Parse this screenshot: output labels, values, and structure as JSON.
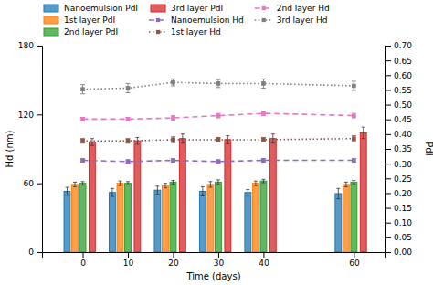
{
  "chart_data": {
    "type": "bar",
    "xlabel": "Time (days)",
    "ylabel": "Hd (nm)",
    "y2label": "PdI",
    "x": [
      0,
      10,
      20,
      30,
      40,
      60
    ],
    "xlim": [
      -9,
      67
    ],
    "xticks": [
      0,
      10,
      20,
      30,
      40,
      60
    ],
    "ylim": [
      0,
      180
    ],
    "yticks": [
      0,
      60,
      120,
      180
    ],
    "y2lim": [
      0,
      0.7
    ],
    "y2ticks": [
      {
        "value": 0,
        "label": "0.00"
      },
      0.05,
      {
        "value": 0.1,
        "label": "0.10"
      },
      0.15,
      {
        "value": 0.2,
        "label": "0.20"
      },
      0.25,
      {
        "value": 0.3,
        "label": "0.30"
      },
      0.35,
      {
        "value": 0.4,
        "label": "0.40"
      },
      0.45,
      {
        "value": 0.5,
        "label": "0.50"
      },
      0.55,
      {
        "value": 0.6,
        "label": "0.60"
      },
      0.65,
      {
        "value": 0.7,
        "label": "0.70"
      }
    ],
    "grid": false,
    "legend": "upper left",
    "series": [
      {
        "name": "Nanoemulsion PdI",
        "type": "bar",
        "values": [
          53,
          52,
          54,
          53,
          52,
          51
        ],
        "errors": [
          3.5,
          3.5,
          3.5,
          4.0,
          2.5,
          4.5
        ]
      },
      {
        "name": "1st layer PdI",
        "type": "bar",
        "values": [
          59,
          60,
          58,
          59,
          60,
          59
        ],
        "errors": [
          2.0,
          2.0,
          2.0,
          2.5,
          2.0,
          2.0
        ]
      },
      {
        "name": "2nd layer PdI",
        "type": "bar",
        "values": [
          60,
          60,
          61,
          61,
          62,
          61
        ],
        "errors": [
          1.5,
          1.5,
          1.5,
          2.0,
          1.5,
          1.5
        ]
      },
      {
        "name": "3rd layer PdI",
        "type": "bar",
        "values": [
          96,
          97,
          99,
          98,
          99,
          104
        ],
        "errors": [
          3.0,
          3.0,
          4.0,
          3.5,
          4.0,
          5.0
        ]
      },
      {
        "name": "Nanoemulsion Hd",
        "type": "line",
        "line_style": "dashed",
        "marker": "square",
        "values": [
          80,
          79,
          80,
          79,
          80,
          80
        ],
        "errors": [
          1.5,
          1.5,
          1.5,
          1.5,
          1.5,
          1.5
        ]
      },
      {
        "name": "1st layer Hd",
        "type": "line",
        "line_style": "dotted",
        "marker": "square",
        "values": [
          97,
          97,
          98,
          98,
          98,
          99
        ],
        "errors": [
          2.0,
          2.0,
          2.5,
          2.0,
          2.0,
          2.5
        ]
      },
      {
        "name": "2nd layer Hd",
        "type": "line",
        "line_style": "dashed",
        "marker": "square",
        "values": [
          116,
          116,
          117,
          119,
          121,
          119
        ],
        "errors": [
          1.5,
          1.5,
          2.0,
          2.0,
          2.0,
          2.0
        ]
      },
      {
        "name": "3rd layer Hd",
        "type": "line",
        "line_style": "dotted",
        "marker": "square",
        "values": [
          142,
          143,
          148,
          147,
          147,
          145
        ],
        "errors": [
          4.0,
          4.0,
          3.0,
          3.5,
          4.0,
          4.0
        ]
      }
    ]
  }
}
